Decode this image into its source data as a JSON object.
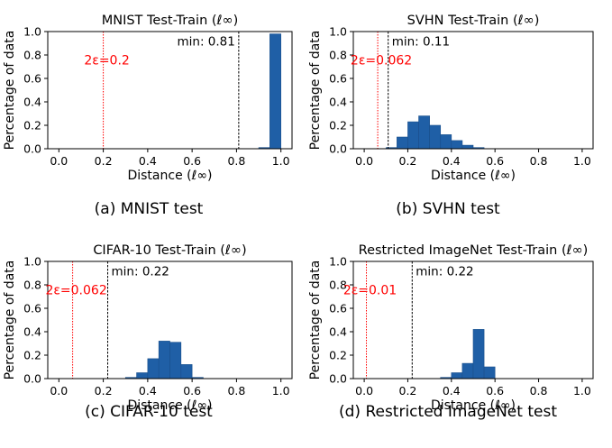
{
  "figure": {
    "captions": [
      "(a) MNIST test",
      "(b) SVHN test",
      "(c) CIFAR-10 test",
      "(d) Restricted ImageNet test"
    ]
  },
  "colors": {
    "bar_fill": "#1f5fa6",
    "bar_edge": "#1a4f8c",
    "epsilon_line": "#ff0000",
    "min_line": "#000000"
  },
  "chart_data": [
    {
      "type": "bar",
      "title": "MNIST Test-Train (ℓ∞)",
      "xlabel": "Distance (ℓ∞)",
      "ylabel": "Percentage of data",
      "xlim": [
        -0.05,
        1.05
      ],
      "ylim": [
        0,
        1.0
      ],
      "xticks": [
        "0.0",
        "0.2",
        "0.4",
        "0.6",
        "0.8",
        "1.0"
      ],
      "yticks": [
        "0.0",
        "0.2",
        "0.4",
        "0.6",
        "0.8",
        "1.0"
      ],
      "bin_width": 0.05,
      "bins": [
        0.9,
        0.95
      ],
      "values": [
        0.01,
        0.98
      ],
      "epsilon_line": 0.2,
      "epsilon_label": "2ε=0.2",
      "min_line": 0.81,
      "min_label": "min:  0.81"
    },
    {
      "type": "bar",
      "title": "SVHN Test-Train (ℓ∞)",
      "xlabel": "Distance (ℓ∞)",
      "ylabel": "Percentage of data",
      "xlim": [
        -0.05,
        1.05
      ],
      "ylim": [
        0,
        1.0
      ],
      "xticks": [
        "0.0",
        "0.2",
        "0.4",
        "0.6",
        "0.8",
        "1.0"
      ],
      "yticks": [
        "0.0",
        "0.2",
        "0.4",
        "0.6",
        "0.8",
        "1.0"
      ],
      "bin_width": 0.05,
      "bins": [
        0.1,
        0.15,
        0.2,
        0.25,
        0.3,
        0.35,
        0.4,
        0.45,
        0.5
      ],
      "values": [
        0.01,
        0.1,
        0.23,
        0.28,
        0.2,
        0.12,
        0.07,
        0.03,
        0.01
      ],
      "epsilon_line": 0.062,
      "epsilon_label": "2ε=0.062",
      "min_line": 0.11,
      "min_label": "min:  0.11"
    },
    {
      "type": "bar",
      "title": "CIFAR-10 Test-Train (ℓ∞)",
      "xlabel": "Distance (ℓ∞)",
      "ylabel": "Percentage of data",
      "xlim": [
        -0.05,
        1.05
      ],
      "ylim": [
        0,
        1.0
      ],
      "xticks": [
        "0.0",
        "0.2",
        "0.4",
        "0.6",
        "0.8",
        "1.0"
      ],
      "yticks": [
        "0.0",
        "0.2",
        "0.4",
        "0.6",
        "0.8",
        "1.0"
      ],
      "bin_width": 0.05,
      "bins": [
        0.3,
        0.35,
        0.4,
        0.45,
        0.5,
        0.55,
        0.6
      ],
      "values": [
        0.01,
        0.05,
        0.17,
        0.32,
        0.31,
        0.12,
        0.01
      ],
      "epsilon_line": 0.062,
      "epsilon_label": "2ε=0.062",
      "min_line": 0.22,
      "min_label": "min:  0.22"
    },
    {
      "type": "bar",
      "title": "Restricted ImageNet Test-Train (ℓ∞)",
      "xlabel": "Distance (ℓ∞)",
      "ylabel": "Percentage of data",
      "xlim": [
        -0.05,
        1.05
      ],
      "ylim": [
        0,
        1.0
      ],
      "xticks": [
        "0.0",
        "0.2",
        "0.4",
        "0.6",
        "0.8",
        "1.0"
      ],
      "yticks": [
        "0.0",
        "0.2",
        "0.4",
        "0.6",
        "0.8",
        "1.0"
      ],
      "bin_width": 0.05,
      "bins": [
        0.35,
        0.4,
        0.45,
        0.5,
        0.55
      ],
      "values": [
        0.01,
        0.05,
        0.13,
        0.42,
        0.1
      ],
      "epsilon_line": 0.01,
      "epsilon_label": "2ε=0.01",
      "min_line": 0.22,
      "min_label": "min:  0.22"
    }
  ]
}
